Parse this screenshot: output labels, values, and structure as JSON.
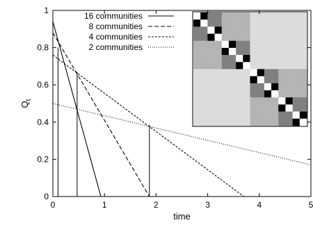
{
  "chart_data": {
    "type": "line",
    "xlabel": "time",
    "ylabel": "Q_t",
    "xlim": [
      0,
      5
    ],
    "ylim": [
      0,
      1
    ],
    "x_ticks": [
      "0",
      "1",
      "2",
      "3",
      "4",
      "5"
    ],
    "y_ticks": [
      "0",
      "0.2",
      "0.4",
      "0.6",
      "0.8",
      "1"
    ],
    "legend_position": "top-left",
    "series": [
      {
        "name": "16 communities",
        "dash": "solid",
        "x": [
          0,
          0.93
        ],
        "y": [
          0.94,
          0
        ]
      },
      {
        "name": "8 communities",
        "dash": "dashed",
        "x": [
          0,
          1.87
        ],
        "y": [
          0.88,
          0
        ]
      },
      {
        "name": "4 communities",
        "dash": "dotted-dense",
        "x": [
          0,
          3.7
        ],
        "y": [
          0.76,
          0
        ]
      },
      {
        "name": "2 communities",
        "dash": "dotted-sparse",
        "x": [
          0,
          5
        ],
        "y": [
          0.5,
          0.17
        ]
      }
    ],
    "vertical_markers": [
      {
        "x": 0.1,
        "y": 0.8
      },
      {
        "x": 0.47,
        "y": 0.67
      },
      {
        "x": 1.87,
        "y": 0.385
      }
    ],
    "inset": {
      "type": "heatmap",
      "matrix_size": 16,
      "hierarchy_levels": [
        2,
        4,
        8,
        16
      ],
      "shades": {
        "level_16": "#000000",
        "level_8": "#808080",
        "level_4": "#b4b4b4",
        "level_2": "#dcdcdc",
        "diagonal": "#ffffff"
      }
    }
  }
}
